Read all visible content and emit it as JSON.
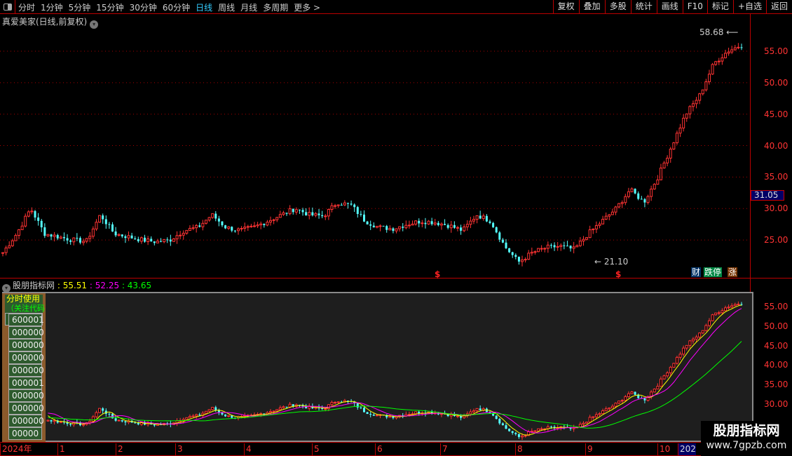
{
  "toolbar": {
    "periods": [
      "分时",
      "1分钟",
      "5分钟",
      "15分钟",
      "30分钟",
      "60分钟",
      "日线",
      "周线",
      "月线",
      "多周期",
      "更多 >"
    ],
    "active_period": "日线",
    "tools": [
      "复权",
      "叠加",
      "多股",
      "统计",
      "画线",
      "F10",
      "标记",
      "+自选",
      "返回"
    ]
  },
  "main": {
    "title": "真爱美家(日线,前复权)",
    "high_label": "58.68",
    "low_label": "21.10",
    "last_price": "31.05",
    "y_ticks": [
      "55.00",
      "50.00",
      "45.00",
      "40.00",
      "35.00",
      "30.00",
      "25.00"
    ],
    "badges": [
      "财",
      "跌停",
      "涨"
    ],
    "markers": [
      "$",
      "$"
    ]
  },
  "indicator": {
    "name": "股朋指标网",
    "v1": ": 55.51",
    "v2": ": 52.25",
    "v3": ": 43.65",
    "y_ticks": [
      "55.00",
      "50.00",
      "45.00",
      "40.00",
      "35.00",
      "30.00"
    ],
    "side_header": "分时使用",
    "side_sub": "（关注代码）",
    "side_codes": [
      "600001",
      "000000",
      "000000",
      "000000",
      "000000",
      "000001",
      "000000",
      "000000",
      "000000",
      "00000"
    ]
  },
  "xaxis": {
    "labels": [
      "2024年",
      "1",
      "2",
      "3",
      "4",
      "5",
      "6",
      "7",
      "8",
      "9",
      "10",
      "202"
    ]
  },
  "watermark": {
    "name": "股朋指标网",
    "url": "www.7gpzb.com"
  },
  "colors": {
    "up": "#ff3333",
    "down": "#54ffff",
    "ma1": "#ffff00",
    "ma2": "#ff00ff",
    "ma3": "#00ff00",
    "axis": "#bb0000",
    "active": "#33ccff"
  },
  "chart_data": {
    "type": "candlestick",
    "ylim": [
      20,
      60
    ],
    "approx_closes": [
      23,
      26,
      30,
      26,
      25.5,
      25,
      24.8,
      29,
      26,
      25.5,
      25,
      24.7,
      25,
      26.5,
      27,
      29,
      27,
      26.5,
      27,
      28,
      29,
      30,
      29,
      28.8,
      31,
      30.5,
      28,
      27,
      26.8,
      27.5,
      28,
      27.8,
      27.3,
      26.5,
      29,
      28,
      24,
      21.5,
      23,
      23.8,
      24,
      23.5,
      26,
      28,
      30,
      33,
      31,
      35,
      40,
      45,
      48,
      53,
      55,
      56
    ]
  }
}
